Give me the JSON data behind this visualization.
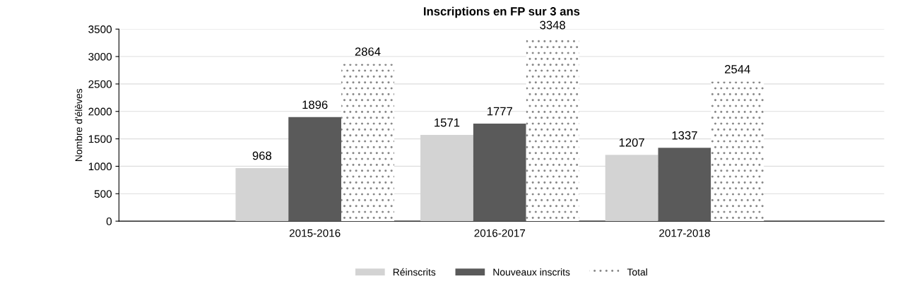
{
  "chart_data": {
    "type": "bar",
    "title": "Inscriptions en FP sur 3 ans",
    "ylabel": "Nombre d'élèves",
    "categories": [
      "2015-2016",
      "2016-2017",
      "2017-2018"
    ],
    "series": [
      {
        "name": "Réinscrits",
        "color": "#d3d3d3",
        "values": [
          968,
          1571,
          1207
        ]
      },
      {
        "name": "Nouveaux inscrits",
        "color": "#5a5a5a",
        "values": [
          1896,
          1777,
          1337
        ]
      },
      {
        "name": "Total",
        "color": "#ffffff",
        "values": [
          2864,
          3348,
          2544
        ]
      }
    ],
    "ylim": [
      0,
      3500
    ],
    "yticks": [
      0,
      500,
      1000,
      1500,
      2000,
      2500,
      3000,
      3500
    ],
    "grid": "y",
    "legend": "bottom",
    "data_labels": true
  }
}
